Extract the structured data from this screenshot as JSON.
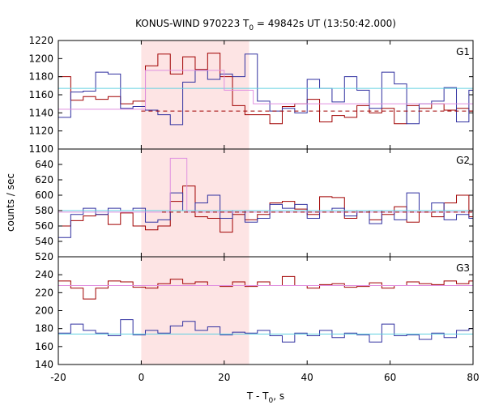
{
  "chart_data": {
    "type": "line",
    "title": "KONUS-WIND 970223 T0 = 49842s UT (13:50:42.000)",
    "title_parts": {
      "prefix": "KONUS-WIND 970223 T",
      "sub": "0",
      "suffix": " = 49842s UT (13:50:42.000)"
    },
    "xlabel_parts": {
      "prefix": "T - T",
      "sub": "0",
      "suffix": ", s"
    },
    "ylabel": "counts / sec",
    "xlim": [
      -20,
      80
    ],
    "xticks": [
      "-20",
      "0",
      "20",
      "40",
      "60",
      "80"
    ],
    "shaded_interval": [
      0,
      26
    ],
    "colors": {
      "dark_red": "#a00000",
      "blue": "#3030a0",
      "pink": "#e090e0",
      "cyan": "#60d0e0",
      "shade": "#fde4e4"
    },
    "panels": [
      {
        "label": "G1",
        "ylim": [
          1100,
          1220
        ],
        "yticks": [
          "1100",
          "1120",
          "1140",
          "1160",
          "1180",
          "1200",
          "1220"
        ],
        "step": 3,
        "series": [
          {
            "color": "dark_red",
            "x_start": -20,
            "values": [
              1180,
              1154,
              1158,
              1155,
              1158,
              1150,
              1153,
              1192,
              1205,
              1183,
              1202,
              1188,
              1206,
              1180,
              1148,
              1138,
              1138,
              1128,
              1147,
              1150,
              1155,
              1130,
              1137,
              1135,
              1148,
              1140,
              1145,
              1128,
              1148,
              1145,
              1150,
              1143,
              1145,
              1142
            ]
          },
          {
            "color": "blue",
            "x_start": -20,
            "values": [
              1135,
              1163,
              1164,
              1185,
              1183,
              1145,
              1147,
              1143,
              1138,
              1127,
              1174,
              1187,
              1177,
              1183,
              1180,
              1205,
              1153,
              1142,
              1145,
              1140,
              1177,
              1167,
              1152,
              1180,
              1165,
              1145,
              1185,
              1172,
              1128,
              1150,
              1153,
              1168,
              1130,
              1165
            ]
          },
          {
            "color": "cyan",
            "flat": [
              -20,
              80,
              1167
            ]
          },
          {
            "color": "pink",
            "steps": [
              [
                -20,
                1144
              ],
              [
                1,
                1187
              ],
              [
                20,
                1165
              ],
              [
                27,
                1150
              ],
              [
                80,
                1150
              ]
            ]
          },
          {
            "color": "dark_red",
            "dashed": true,
            "flat": [
              0,
              80,
              1142
            ]
          }
        ]
      },
      {
        "label": "G2",
        "ylim": [
          520,
          660
        ],
        "yticks": [
          "520",
          "540",
          "560",
          "580",
          "600",
          "620",
          "640"
        ],
        "step": 3,
        "series": [
          {
            "color": "dark_red",
            "x_start": -20,
            "values": [
              560,
              567,
              573,
              575,
              562,
              577,
              560,
              555,
              560,
              592,
              612,
              572,
              570,
              552,
              575,
              568,
              575,
              590,
              592,
              582,
              575,
              598,
              597,
              570,
              580,
              568,
              575,
              585,
              565,
              578,
              572,
              590,
              600,
              572
            ]
          },
          {
            "color": "blue",
            "x_start": -20,
            "values": [
              545,
              575,
              583,
              575,
              583,
              580,
              583,
              565,
              568,
              603,
              580,
              590,
              600,
              570,
              580,
              565,
              570,
              588,
              583,
              588,
              570,
              580,
              583,
              573,
              578,
              563,
              580,
              568,
              603,
              580,
              590,
              568,
              575,
              570
            ]
          },
          {
            "color": "cyan",
            "flat": [
              -20,
              80,
              580
            ]
          },
          {
            "color": "pink",
            "steps": [
              [
                -20,
                578
              ],
              [
                7,
                648
              ],
              [
                11,
                578
              ],
              [
                80,
                578
              ]
            ]
          },
          {
            "color": "dark_red",
            "dashed": true,
            "flat": [
              5,
              80,
              578
            ]
          }
        ]
      },
      {
        "label": "G3",
        "ylim": [
          140,
          260
        ],
        "yticks": [
          "140",
          "160",
          "180",
          "200",
          "220",
          "240"
        ],
        "step": 3,
        "series": [
          {
            "color": "dark_red",
            "x_start": -20,
            "values": [
              233,
              225,
              213,
              225,
              233,
              232,
              226,
              225,
              230,
              235,
              230,
              232,
              228,
              227,
              232,
              227,
              232,
              228,
              238,
              228,
              225,
              229,
              230,
              226,
              227,
              231,
              225,
              228,
              232,
              230,
              229,
              233,
              230,
              233
            ]
          },
          {
            "color": "blue",
            "x_start": -20,
            "values": [
              175,
              185,
              178,
              175,
              172,
              190,
              173,
              178,
              175,
              183,
              188,
              178,
              182,
              173,
              176,
              175,
              178,
              172,
              165,
              175,
              172,
              178,
              170,
              175,
              173,
              165,
              185,
              172,
              173,
              168,
              175,
              170,
              178,
              180
            ]
          },
          {
            "color": "cyan",
            "flat": [
              -20,
              80,
              174
            ]
          },
          {
            "color": "pink",
            "flat": [
              -20,
              80,
              228
            ]
          }
        ]
      }
    ]
  }
}
